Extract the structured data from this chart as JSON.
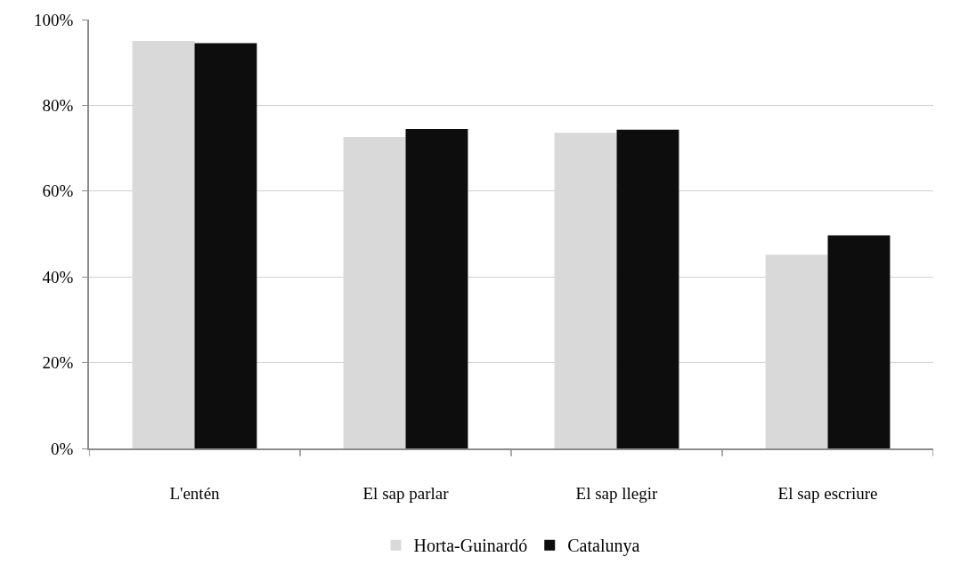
{
  "chart_data": {
    "type": "bar",
    "categories": [
      "L'entén",
      "El sap parlar",
      "El sap llegir",
      "El sap escriure"
    ],
    "series": [
      {
        "name": "Horta-Guinardó",
        "color": "#d9d9d9",
        "values": [
          95.0,
          72.6,
          73.6,
          45.2
        ]
      },
      {
        "name": "Catalunya",
        "color": "#0d0d0d",
        "values": [
          94.5,
          74.5,
          74.3,
          49.7
        ]
      }
    ],
    "ylim": [
      0,
      100
    ],
    "yticks": [
      {
        "value": 0,
        "label": "0%"
      },
      {
        "value": 20,
        "label": "20%"
      },
      {
        "value": 40,
        "label": "40%"
      },
      {
        "value": 60,
        "label": "60%"
      },
      {
        "value": 80,
        "label": "80%"
      },
      {
        "value": 100,
        "label": "100%"
      }
    ],
    "grid": "y",
    "legend": "bottom"
  }
}
